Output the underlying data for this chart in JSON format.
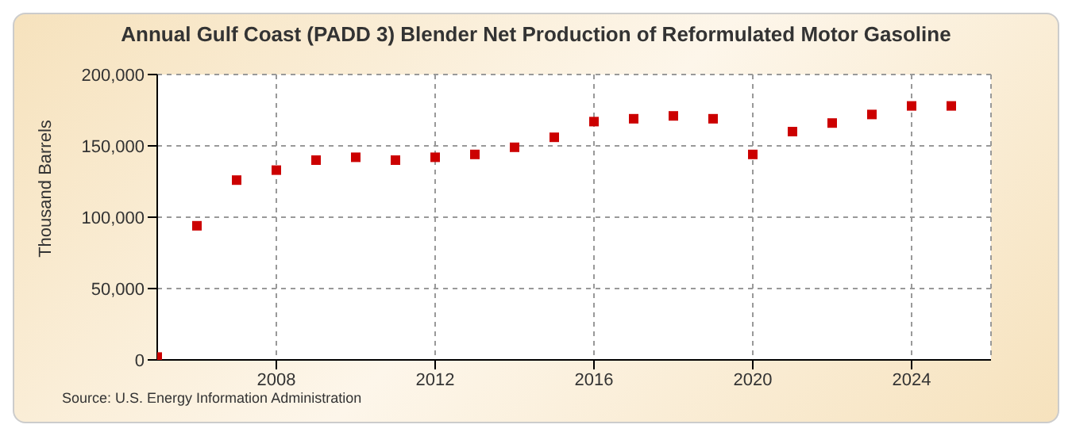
{
  "chart_data": {
    "type": "scatter",
    "title": "Annual Gulf Coast (PADD 3) Blender Net Production of Reformulated Motor Gasoline",
    "ylabel": "Thousand Barrels",
    "annotations": [
      "Source: U.S. Energy Information Administration"
    ],
    "x": [
      2005,
      2006,
      2007,
      2008,
      2009,
      2010,
      2011,
      2012,
      2013,
      2014,
      2015,
      2016,
      2017,
      2018,
      2019,
      2020,
      2021,
      2022,
      2023,
      2024,
      2025
    ],
    "series": [
      {
        "color": "#cc0000",
        "values": [
          2000,
          94000,
          126000,
          133000,
          140000,
          142000,
          140000,
          142000,
          144000,
          149000,
          156000,
          167000,
          169000,
          171000,
          169000,
          144000,
          160000,
          166000,
          172000,
          178000,
          178000
        ]
      }
    ],
    "xlim": [
      2005,
      2026
    ],
    "xticks": [
      2008,
      2012,
      2016,
      2020,
      2024
    ],
    "ylim": [
      0,
      200000
    ],
    "yticks": [
      0,
      {
        "value": 50000,
        "label": "50,000"
      },
      {
        "value": 100000,
        "label": "100,000"
      },
      {
        "value": 150000,
        "label": "150,000"
      },
      {
        "value": 200000,
        "label": "200,000"
      }
    ],
    "grid": true,
    "legend": false,
    "marker": "square"
  }
}
